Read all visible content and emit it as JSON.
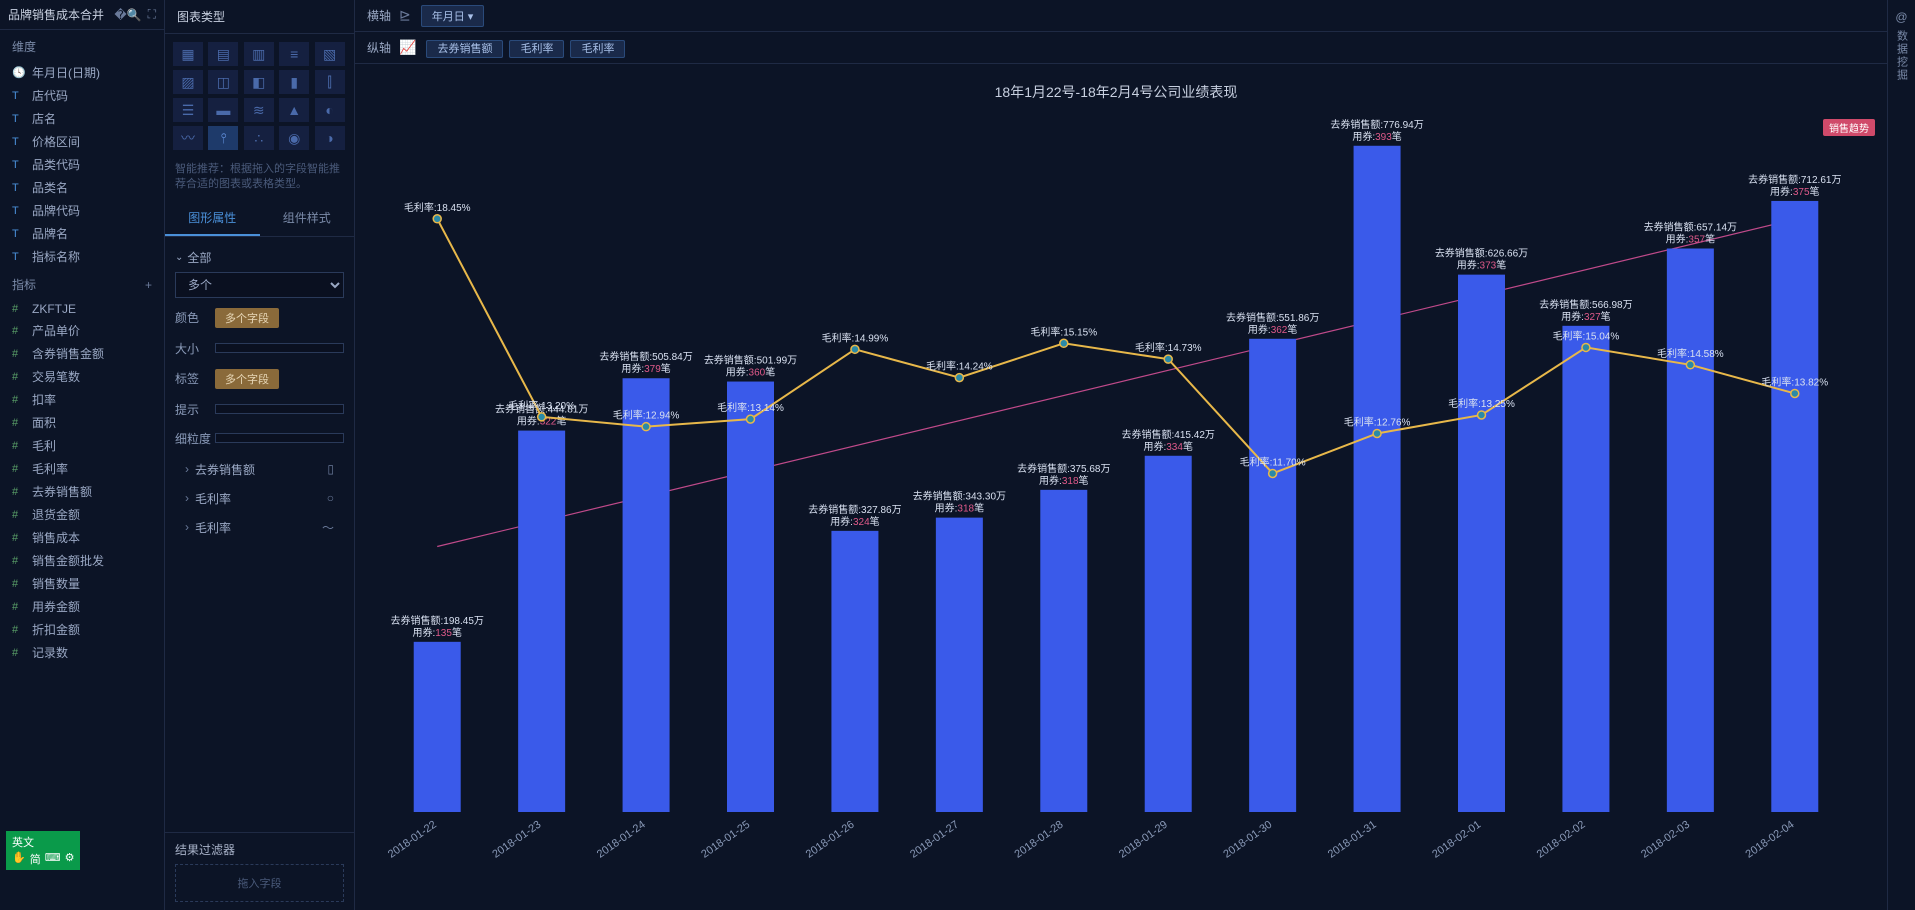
{
  "header": {
    "dataset_name": "品牌销售成本合并"
  },
  "dimensions": {
    "title": "维度",
    "items": [
      {
        "icon": "clock",
        "label": "年月日(日期)"
      },
      {
        "icon": "T",
        "label": "店代码"
      },
      {
        "icon": "T",
        "label": "店名"
      },
      {
        "icon": "T",
        "label": "价格区间"
      },
      {
        "icon": "T",
        "label": "品类代码"
      },
      {
        "icon": "T",
        "label": "品类名"
      },
      {
        "icon": "T",
        "label": "品牌代码"
      },
      {
        "icon": "T",
        "label": "品牌名"
      },
      {
        "icon": "T",
        "label": "指标名称"
      }
    ]
  },
  "measures": {
    "title": "指标",
    "items": [
      {
        "label": "ZKFTJE"
      },
      {
        "label": "产品单价"
      },
      {
        "label": "含券销售金额"
      },
      {
        "label": "交易笔数"
      },
      {
        "label": "扣率"
      },
      {
        "label": "面积"
      },
      {
        "label": "毛利"
      },
      {
        "label": "毛利率"
      },
      {
        "label": "去券销售额"
      },
      {
        "label": "退货金额"
      },
      {
        "label": "销售成本"
      },
      {
        "label": "销售金额批发"
      },
      {
        "label": "销售数量"
      },
      {
        "label": "用券金额"
      },
      {
        "label": "折扣金额"
      },
      {
        "label": "记录数"
      }
    ]
  },
  "config": {
    "chart_type_title": "图表类型",
    "hint": "智能推荐：根据拖入的字段智能推荐合适的图表或表格类型。",
    "tab_graphic": "图形属性",
    "tab_style": "组件样式",
    "expand_all": "全部",
    "select_multi": "多个",
    "color_label": "颜色",
    "color_chip": "多个字段",
    "size_label": "大小",
    "label_label": "标签",
    "label_chip": "多个字段",
    "tooltip_label": "提示",
    "granularity_label": "细粒度",
    "measure_rows": [
      {
        "label": "去券销售额",
        "shape": "bar"
      },
      {
        "label": "毛利率",
        "shape": "circle"
      },
      {
        "label": "毛利率",
        "shape": "line"
      }
    ],
    "filter_title": "结果过滤器",
    "filter_placeholder": "拖入字段"
  },
  "axes": {
    "x_label": "横轴",
    "x_pill": "年月日",
    "y_label": "纵轴",
    "y_pills": [
      "去券销售额",
      "毛利率",
      "毛利率"
    ]
  },
  "chart": {
    "title": "18年1月22号-18年2月4号公司业绩表现",
    "legend_badge": "销售趋势",
    "type": "combo-bar-line",
    "bar_color": "#3a5aea",
    "line_color": "#e8b84a",
    "marker_fill": "#2a8aa8",
    "marker_stroke": "#e8b84a",
    "trend_color": "#c04a8a",
    "label_color": "#d8e0f0",
    "label_highlight": "#e05a8a",
    "label_highlight2": "#3a8ae0",
    "background": "#0c1426",
    "categories": [
      "2018-01-22",
      "2018-01-23",
      "2018-01-24",
      "2018-01-25",
      "2018-01-26",
      "2018-01-27",
      "2018-01-28",
      "2018-01-29",
      "2018-01-30",
      "2018-01-31",
      "2018-02-01",
      "2018-02-02",
      "2018-02-03",
      "2018-02-04"
    ],
    "bar_values": [
      198.45,
      444.81,
      505.84,
      501.99,
      327.86,
      343.3,
      375.68,
      415.42,
      551.86,
      776.94,
      626.66,
      566.98,
      657.14,
      712.61
    ],
    "bar_label_prefix": "去券销售额:",
    "bar_label_suffix": "万",
    "bar_sub_prefix": "用券:",
    "bar_sub_suffix": "笔",
    "bar_sub_values": [
      135,
      322,
      379,
      360,
      324,
      318,
      318,
      334,
      362,
      393,
      373,
      327,
      357,
      375
    ],
    "line_values": [
      18.45,
      13.2,
      12.94,
      13.14,
      14.99,
      14.24,
      15.15,
      14.73,
      11.7,
      12.76,
      13.25,
      15.04,
      14.58,
      13.82
    ],
    "line_label_prefix": "毛利率:",
    "line_label_suffix": "%",
    "bar_ylim": [
      0,
      800
    ],
    "line_ylim": [
      10,
      20
    ],
    "bar_width_ratio": 0.45,
    "label_fontsize": 10
  },
  "right_rail": {
    "icon": "@",
    "label": "数据挖掘"
  },
  "ime": {
    "line1": "英文",
    "line2": "简"
  }
}
